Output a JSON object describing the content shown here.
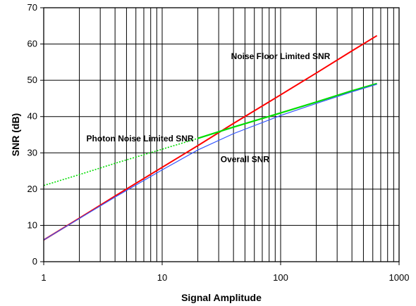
{
  "chart_data": {
    "type": "line",
    "xlabel": "Signal Amplitude",
    "ylabel": "SNR (dB)",
    "x_scale": "log",
    "xlim": [
      1,
      1000
    ],
    "ylim": [
      0,
      70
    ],
    "x_ticks": [
      1,
      10,
      100,
      1000
    ],
    "x_tick_labels": [
      "1",
      "10",
      "100",
      "1000"
    ],
    "y_ticks": [
      0,
      10,
      20,
      30,
      40,
      50,
      60,
      70
    ],
    "y_tick_labels": [
      "0",
      "10",
      "20",
      "30",
      "40",
      "50",
      "60",
      "70"
    ],
    "grid": "major y, minor log x",
    "series": [
      {
        "name": "Noise Floor Limited SNR",
        "color": "#ff0000",
        "style": "solid",
        "x": [
          1,
          2,
          4,
          10,
          20,
          40,
          100,
          200,
          400,
          650
        ],
        "y": [
          6.0,
          12.0,
          18.1,
          26.0,
          32.0,
          38.1,
          46.0,
          52.0,
          58.1,
          62.3
        ]
      },
      {
        "name": "Photon Noise Limited SNR",
        "color": "#00dd00",
        "style": "dotted-to-solid",
        "x": [
          1,
          2,
          4,
          10,
          20,
          40,
          100,
          200,
          400,
          650
        ],
        "y": [
          21.0,
          24.0,
          27.1,
          31.0,
          34.0,
          37.1,
          41.0,
          44.0,
          47.1,
          49.1
        ]
      },
      {
        "name": "Overall SNR",
        "color": "#3355ff",
        "style": "solid",
        "x": [
          1,
          2,
          4,
          10,
          20,
          40,
          100,
          200,
          400,
          650
        ],
        "y": [
          6.0,
          11.9,
          17.8,
          25.3,
          30.8,
          35.3,
          40.3,
          43.6,
          46.8,
          48.9
        ]
      }
    ],
    "annotations": [
      {
        "text": "Noise Floor Limited SNR",
        "x": 100,
        "y": 55.8
      },
      {
        "text": "Photon Noise Limited SNR",
        "x": 6.5,
        "y": 33.2
      },
      {
        "text": "Overall SNR",
        "x": 50,
        "y": 27.4
      }
    ]
  }
}
